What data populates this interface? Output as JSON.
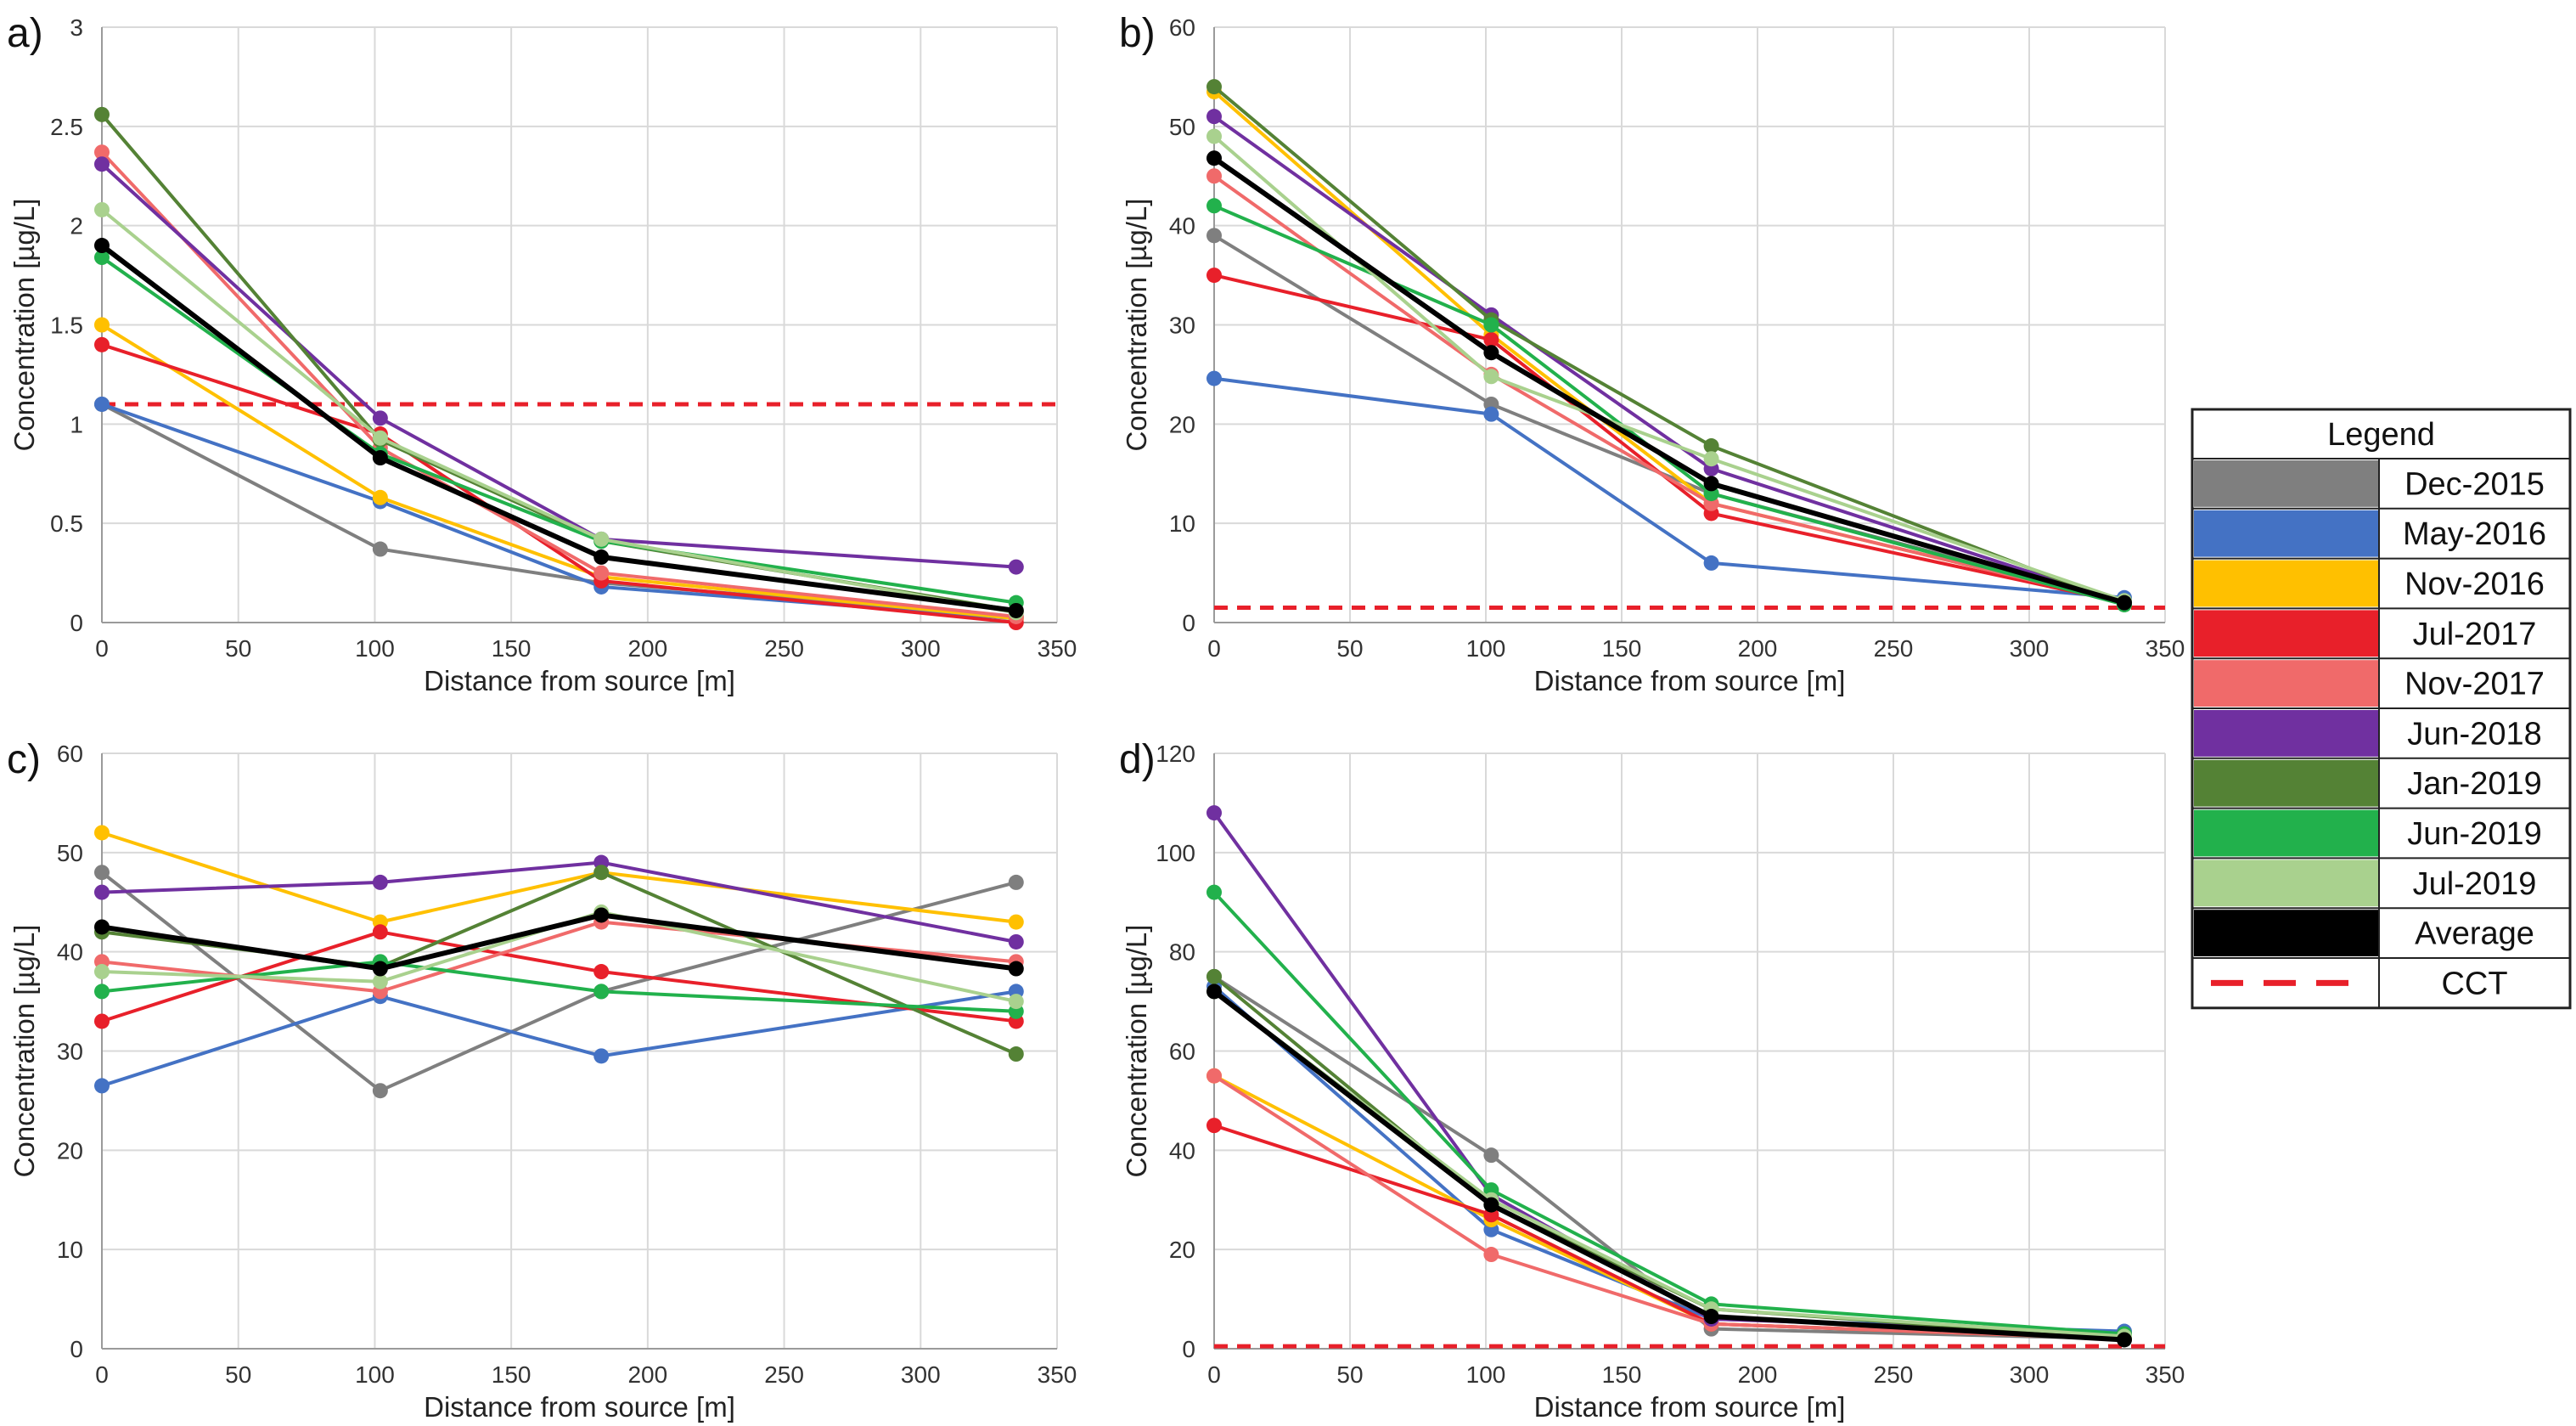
{
  "colors": {
    "Dec-2015": "#7f7f7f",
    "May-2016": "#4472c4",
    "Nov-2016": "#ffc000",
    "Jul-2017": "#e8202a",
    "Nov-2017": "#f06a6a",
    "Jun-2018": "#7030a0",
    "Jan-2019": "#548235",
    "Jun-2019": "#22b14c",
    "Jul-2019": "#a9d18e",
    "Average": "#000000",
    "CCT": "#e8202a"
  },
  "legend": {
    "title": "Legend",
    "entries": [
      "Dec-2015",
      "May-2016",
      "Nov-2016",
      "Jul-2017",
      "Nov-2017",
      "Jun-2018",
      "Jan-2019",
      "Jun-2019",
      "Jul-2019",
      "Average",
      "CCT"
    ]
  },
  "chart_data": [
    {
      "panel": "a)",
      "type": "line",
      "xlabel": "Distance from source [m]",
      "ylabel": "Concentration [µg/L]",
      "xlim": [
        0,
        350
      ],
      "ylim": [
        0,
        3
      ],
      "xticks": [
        0,
        50,
        100,
        150,
        200,
        250,
        300,
        350
      ],
      "yticks": [
        0,
        0.5,
        1,
        1.5,
        2,
        2.5,
        3
      ],
      "yticklabels": [
        "0",
        "0.5",
        "1",
        "1.5",
        "2",
        "2.5",
        "3"
      ],
      "x": [
        0,
        102,
        183,
        335
      ],
      "cct": 1.1,
      "series": [
        {
          "name": "Dec-2015",
          "values": [
            1.1,
            0.37,
            0.2,
            0.03
          ]
        },
        {
          "name": "May-2016",
          "values": [
            1.1,
            0.61,
            0.18,
            0.02
          ]
        },
        {
          "name": "Nov-2016",
          "values": [
            1.5,
            0.63,
            0.23,
            0.02
          ]
        },
        {
          "name": "Jul-2017",
          "values": [
            1.4,
            0.95,
            0.21,
            0.0
          ]
        },
        {
          "name": "Nov-2017",
          "values": [
            2.37,
            0.88,
            0.25,
            0.03
          ]
        },
        {
          "name": "Jun-2018",
          "values": [
            2.31,
            1.03,
            0.42,
            0.28
          ]
        },
        {
          "name": "Jan-2019",
          "values": [
            2.56,
            0.92,
            0.41,
            0.06
          ]
        },
        {
          "name": "Jun-2019",
          "values": [
            1.84,
            0.85,
            0.41,
            0.1
          ]
        },
        {
          "name": "Jul-2019",
          "values": [
            2.08,
            0.93,
            0.42,
            0.05
          ]
        },
        {
          "name": "Average",
          "values": [
            1.9,
            0.83,
            0.33,
            0.06
          ]
        }
      ]
    },
    {
      "panel": "b)",
      "type": "line",
      "xlabel": "Distance from source [m]",
      "ylabel": "Concentration [µg/L]",
      "xlim": [
        0,
        350
      ],
      "ylim": [
        0,
        60
      ],
      "xticks": [
        0,
        50,
        100,
        150,
        200,
        250,
        300,
        350
      ],
      "yticks": [
        0,
        10,
        20,
        30,
        40,
        50,
        60
      ],
      "yticklabels": [
        "0",
        "10",
        "20",
        "30",
        "40",
        "50",
        "60"
      ],
      "x": [
        0,
        102,
        183,
        335
      ],
      "cct": 1.5,
      "series": [
        {
          "name": "Dec-2015",
          "values": [
            39,
            22,
            13,
            2
          ]
        },
        {
          "name": "May-2016",
          "values": [
            24.6,
            21,
            6,
            2.5
          ]
        },
        {
          "name": "Nov-2016",
          "values": [
            53.5,
            29,
            12,
            2
          ]
        },
        {
          "name": "Jul-2017",
          "values": [
            35,
            28.5,
            11,
            2
          ]
        },
        {
          "name": "Nov-2017",
          "values": [
            45,
            25,
            12,
            2
          ]
        },
        {
          "name": "Jun-2018",
          "values": [
            51,
            31,
            15.5,
            2
          ]
        },
        {
          "name": "Jan-2019",
          "values": [
            54,
            30.5,
            17.8,
            1.8
          ]
        },
        {
          "name": "Jun-2019",
          "values": [
            42,
            30,
            13,
            1.8
          ]
        },
        {
          "name": "Jul-2019",
          "values": [
            49,
            24.8,
            16.5,
            2.2
          ]
        },
        {
          "name": "Average",
          "values": [
            46.8,
            27.2,
            14,
            2
          ]
        }
      ]
    },
    {
      "panel": "c)",
      "type": "line",
      "xlabel": "Distance from source [m]",
      "ylabel": "Concentration [µg/L]",
      "xlim": [
        0,
        350
      ],
      "ylim": [
        0,
        60
      ],
      "xticks": [
        0,
        50,
        100,
        150,
        200,
        250,
        300,
        350
      ],
      "yticks": [
        0,
        10,
        20,
        30,
        40,
        50,
        60
      ],
      "yticklabels": [
        "0",
        "10",
        "20",
        "30",
        "40",
        "50",
        "60"
      ],
      "x": [
        0,
        102,
        183,
        335
      ],
      "cct": null,
      "series": [
        {
          "name": "Dec-2015",
          "values": [
            48,
            26,
            36,
            47
          ]
        },
        {
          "name": "May-2016",
          "values": [
            26.5,
            35.5,
            29.5,
            36
          ]
        },
        {
          "name": "Nov-2016",
          "values": [
            52,
            43,
            48,
            43
          ]
        },
        {
          "name": "Jul-2017",
          "values": [
            33,
            42,
            38,
            33
          ]
        },
        {
          "name": "Nov-2017",
          "values": [
            39,
            36,
            43,
            39
          ]
        },
        {
          "name": "Jun-2018",
          "values": [
            46,
            47,
            49,
            41
          ]
        },
        {
          "name": "Jan-2019",
          "values": [
            42,
            38.5,
            48,
            29.7
          ]
        },
        {
          "name": "Jun-2019",
          "values": [
            36,
            39,
            36,
            34
          ]
        },
        {
          "name": "Jul-2019",
          "values": [
            38,
            37,
            44,
            35
          ]
        },
        {
          "name": "Average",
          "values": [
            42.5,
            38.3,
            43.7,
            38.3
          ]
        }
      ]
    },
    {
      "panel": "d)",
      "type": "line",
      "xlabel": "Distance from source [m]",
      "ylabel": "Concentration [µg/L]",
      "xlim": [
        0,
        350
      ],
      "ylim": [
        0,
        120
      ],
      "xticks": [
        0,
        50,
        100,
        150,
        200,
        250,
        300,
        350
      ],
      "yticks": [
        0,
        20,
        40,
        60,
        80,
        100,
        120
      ],
      "yticklabels": [
        "0",
        "20",
        "40",
        "60",
        "80",
        "100",
        "120"
      ],
      "x": [
        0,
        102,
        183,
        335
      ],
      "cct": 0.5,
      "series": [
        {
          "name": "Dec-2015",
          "values": [
            75,
            39,
            4,
            2
          ]
        },
        {
          "name": "May-2016",
          "values": [
            73,
            24,
            6,
            3.5
          ]
        },
        {
          "name": "Nov-2016",
          "values": [
            55,
            26,
            5,
            2
          ]
        },
        {
          "name": "Jul-2017",
          "values": [
            45,
            27,
            5,
            2
          ]
        },
        {
          "name": "Nov-2017",
          "values": [
            55,
            19,
            5,
            2
          ]
        },
        {
          "name": "Jun-2018",
          "values": [
            108,
            31,
            6,
            3
          ]
        },
        {
          "name": "Jan-2019",
          "values": [
            75,
            29,
            8,
            2
          ]
        },
        {
          "name": "Jun-2019",
          "values": [
            92,
            32,
            9,
            3
          ]
        },
        {
          "name": "Jul-2019",
          "values": [
            72,
            30,
            8,
            2.5
          ]
        },
        {
          "name": "Average",
          "values": [
            72,
            29,
            6.5,
            1.8
          ]
        }
      ]
    }
  ]
}
